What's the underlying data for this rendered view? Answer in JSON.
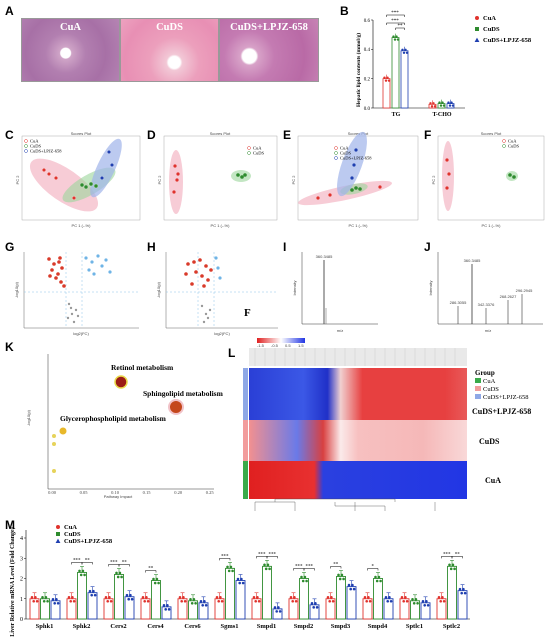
{
  "panels": {
    "A": "A",
    "B": "B",
    "C": "C",
    "D": "D",
    "E": "E",
    "F": "F",
    "G": "G",
    "H": "H",
    "I": "I",
    "J": "J",
    "K": "K",
    "L": "L",
    "M": "M",
    "F2": "F"
  },
  "histology": [
    {
      "label": "CuA"
    },
    {
      "label": "CuDS"
    },
    {
      "label": "CuDS+LPJZ-658"
    }
  ],
  "colors": {
    "cua": "#e0332d",
    "cuds": "#2e8b2e",
    "lpjz": "#1f3fb0",
    "pink": "#f4b6c4",
    "blue": "#9fb3ea",
    "green": "#9bd69b"
  },
  "chart_b": {
    "type": "bar",
    "ylabel": "Hepatic lipid contents (mmol/g)",
    "yticks": [
      "0.0",
      "0.2",
      "0.4",
      "0.6"
    ],
    "categories": [
      "TG",
      "T-CHO"
    ],
    "series": [
      {
        "name": "CuA",
        "values": [
          0.2,
          0.025
        ]
      },
      {
        "name": "CuDS",
        "values": [
          0.48,
          0.03
        ]
      },
      {
        "name": "CuDS+LPJZ-658",
        "values": [
          0.39,
          0.03
        ]
      }
    ],
    "ylim": [
      0,
      0.6
    ],
    "sig": [
      "***",
      "***",
      "**"
    ]
  },
  "pca": [
    {
      "title": "Scores Plot",
      "legend": [
        "CuA",
        "CuDS",
        "CuDS+LPJZ-658"
      ]
    },
    {
      "title": "Scores Plot",
      "legend": [
        "CuA",
        "CuDS"
      ]
    },
    {
      "title": "Scores Plot",
      "legend": [
        "CuA",
        "CuDS",
        "CuDS+LPJZ-658"
      ]
    },
    {
      "title": "Scores Plot",
      "legend": [
        "CuA",
        "CuDS"
      ]
    }
  ],
  "pca_axes": {
    "x": "PC 1 (--%)",
    "y": "PC 2"
  },
  "volcano": {
    "ylabel": "-log10(p)",
    "xlabel": "log2(FC)"
  },
  "ms": {
    "i_peak": "360.3485",
    "j_peaks": [
      "360.3485",
      "286.3055",
      "342.3376",
      "268.2627",
      "296.2945"
    ],
    "ylabel": "Intensity",
    "xlabel": "m/z"
  },
  "chart_k": {
    "type": "scatter",
    "ylabel": "-log10(p)",
    "xlabel": "Pathway Impact",
    "xticks": [
      "0.00",
      "0.05",
      "0.10",
      "0.15",
      "0.20",
      "0.25"
    ],
    "labels": [
      "Retinol metabolism",
      "Sphingolipid metabolism",
      "Glycerophospholipid metabolism"
    ]
  },
  "heatmap": {
    "group_title": "Group",
    "legend": [
      "CuA",
      "CuDS",
      "CuDS+LPJZ-658"
    ],
    "rows": [
      "CuDS+LPJZ-658",
      "CuDS",
      "CuA"
    ],
    "scale": [
      "-1.5",
      "-0.5",
      "0.5",
      "1.5"
    ]
  },
  "chart_m": {
    "type": "bar",
    "ylabel": "Liver Relative mRNA Level (Fold Change)",
    "yticks": [
      "0",
      "1",
      "2",
      "3",
      "4"
    ],
    "ylim": [
      0,
      4
    ],
    "legend": [
      "CuA",
      "CuDS",
      "CuDS+LPJZ-658"
    ],
    "categories": [
      "Sphk1",
      "Sphk2",
      "Cers2",
      "Cers4",
      "Cers6",
      "Sgms1",
      "Smpd1",
      "Smpd2",
      "Smpd3",
      "Smpd4",
      "Sptlc1",
      "Sptlc2"
    ],
    "series": [
      {
        "name": "CuA",
        "values": [
          1.0,
          1.0,
          1.0,
          1.0,
          1.0,
          1.0,
          1.0,
          1.0,
          1.0,
          1.0,
          1.0,
          1.0
        ]
      },
      {
        "name": "CuDS",
        "values": [
          1.0,
          2.3,
          2.2,
          1.9,
          0.9,
          2.5,
          2.6,
          2.0,
          2.1,
          2.0,
          0.9,
          2.6
        ]
      },
      {
        "name": "CuDS+LPJZ-658",
        "values": [
          0.9,
          1.3,
          1.1,
          0.6,
          0.8,
          1.9,
          0.5,
          0.7,
          1.6,
          1.0,
          0.8,
          1.4
        ]
      }
    ],
    "sig": [
      "",
      "***",
      "***",
      "**",
      "",
      "***",
      "***",
      "***",
      "**",
      "*",
      "",
      "***"
    ],
    "sig2": [
      "",
      "**",
      "**",
      "",
      "",
      "",
      "***",
      "***",
      "",
      "",
      "",
      "**"
    ]
  }
}
